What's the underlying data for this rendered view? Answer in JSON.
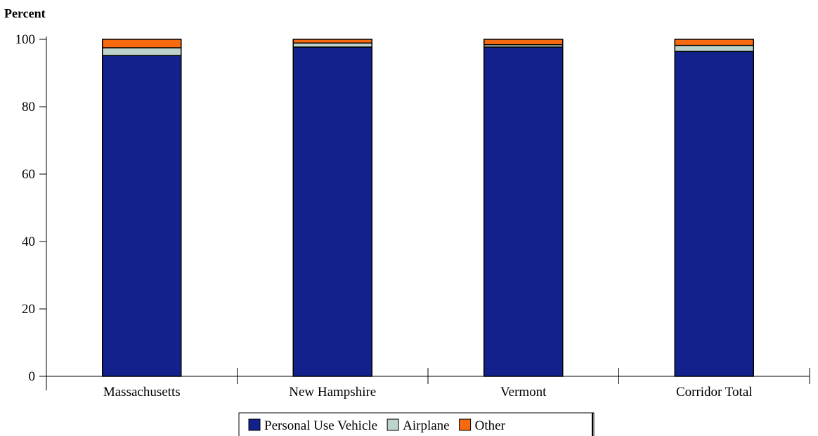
{
  "chart_data": {
    "type": "bar",
    "stacked": true,
    "ylabel": "Percent",
    "xlabel": "",
    "ylim": [
      0,
      100
    ],
    "yticks": [
      "0",
      "20",
      "40",
      "60",
      "80",
      "100"
    ],
    "grid": false,
    "legend_position": "bottom",
    "categories": [
      "Massachusetts",
      "New Hampshire",
      "Vermont",
      "Corridor Total"
    ],
    "series": [
      {
        "name": "Personal Use Vehicle",
        "color": "#12218c",
        "values": [
          95.2,
          97.7,
          97.7,
          96.4
        ]
      },
      {
        "name": "Airplane",
        "color": "#bcd4cc",
        "values": [
          2.3,
          1.2,
          0.7,
          1.8
        ]
      },
      {
        "name": "Other",
        "color": "#f76a10",
        "values": [
          2.5,
          1.1,
          1.6,
          1.8
        ]
      }
    ]
  }
}
